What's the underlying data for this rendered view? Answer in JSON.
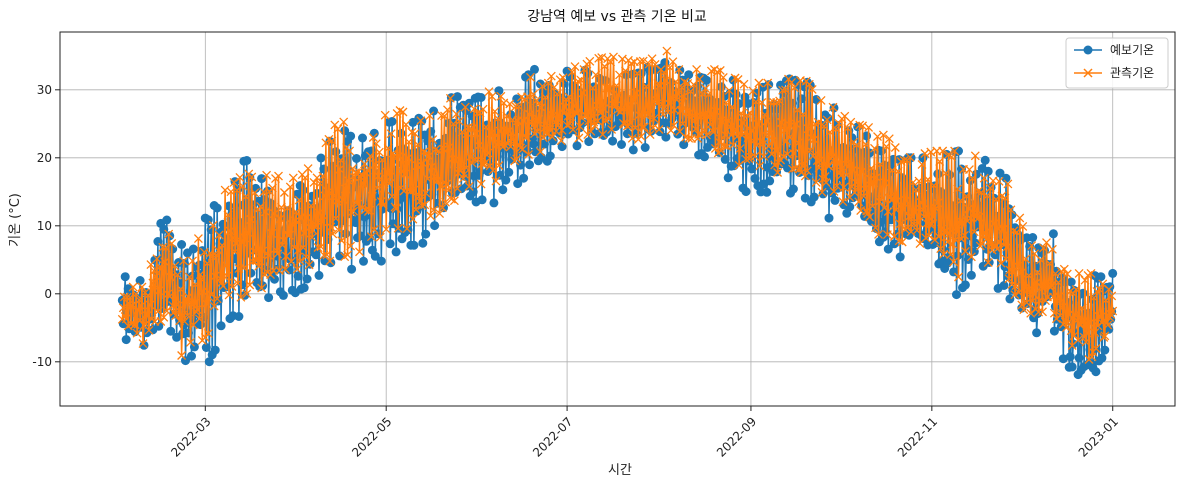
{
  "chart_data": {
    "type": "line",
    "title": "강남역 예보 vs 관측 기온 비교",
    "xlabel": "시간",
    "ylabel": "기온 (°C)",
    "x_range": [
      "2022-01-11",
      "2023-01-22"
    ],
    "ylim": [
      -16.5,
      38.5
    ],
    "x_ticks": [
      "2022-03",
      "2022-05",
      "2022-07",
      "2022-09",
      "2022-11",
      "2023-01"
    ],
    "y_ticks": [
      -10,
      0,
      10,
      20,
      30
    ],
    "grid": true,
    "legend_position": "top-right",
    "data_start": "2022-02-01",
    "data_end": "2023-01-01",
    "series": [
      {
        "name": "예보기온",
        "color": "#1f77b4",
        "marker": "circle",
        "envelope": [
          {
            "date": "2022-02-01",
            "low": -6,
            "high": 3
          },
          {
            "date": "2022-02-08",
            "low": -10,
            "high": 2
          },
          {
            "date": "2022-02-15",
            "low": -5,
            "high": 12
          },
          {
            "date": "2022-02-22",
            "low": -12,
            "high": 7
          },
          {
            "date": "2022-02-28",
            "low": -12,
            "high": 11
          },
          {
            "date": "2022-03-07",
            "low": -6,
            "high": 16
          },
          {
            "date": "2022-03-15",
            "low": -2,
            "high": 20
          },
          {
            "date": "2022-03-22",
            "low": -1,
            "high": 16
          },
          {
            "date": "2022-03-30",
            "low": 0,
            "high": 17
          },
          {
            "date": "2022-04-07",
            "low": 1,
            "high": 19
          },
          {
            "date": "2022-04-15",
            "low": 3,
            "high": 26
          },
          {
            "date": "2022-04-22",
            "low": 4,
            "high": 23
          },
          {
            "date": "2022-05-01",
            "low": 5,
            "high": 26
          },
          {
            "date": "2022-05-10",
            "low": 6,
            "high": 26
          },
          {
            "date": "2022-05-18",
            "low": 9,
            "high": 27
          },
          {
            "date": "2022-05-26",
            "low": 12,
            "high": 30
          },
          {
            "date": "2022-06-03",
            "low": 13,
            "high": 30
          },
          {
            "date": "2022-06-12",
            "low": 14,
            "high": 30
          },
          {
            "date": "2022-06-20",
            "low": 18,
            "high": 33
          },
          {
            "date": "2022-06-28",
            "low": 20,
            "high": 32
          },
          {
            "date": "2022-07-06",
            "low": 22,
            "high": 34
          },
          {
            "date": "2022-07-15",
            "low": 22,
            "high": 31
          },
          {
            "date": "2022-07-25",
            "low": 21,
            "high": 33
          },
          {
            "date": "2022-08-03",
            "low": 23,
            "high": 34
          },
          {
            "date": "2022-08-12",
            "low": 21,
            "high": 32
          },
          {
            "date": "2022-08-21",
            "low": 18,
            "high": 32
          },
          {
            "date": "2022-08-30",
            "low": 14,
            "high": 31
          },
          {
            "date": "2022-09-08",
            "low": 14,
            "high": 31
          },
          {
            "date": "2022-09-18",
            "low": 13,
            "high": 32
          },
          {
            "date": "2022-09-27",
            "low": 11,
            "high": 28
          },
          {
            "date": "2022-10-06",
            "low": 11,
            "high": 25
          },
          {
            "date": "2022-10-15",
            "low": 5,
            "high": 21
          },
          {
            "date": "2022-10-24",
            "low": 3,
            "high": 20
          },
          {
            "date": "2022-11-02",
            "low": 4,
            "high": 20
          },
          {
            "date": "2022-11-10",
            "low": -1,
            "high": 21
          },
          {
            "date": "2022-11-18",
            "low": 2,
            "high": 20
          },
          {
            "date": "2022-11-26",
            "low": -1,
            "high": 17
          },
          {
            "date": "2022-12-04",
            "low": -7,
            "high": 8
          },
          {
            "date": "2022-12-11",
            "low": -5,
            "high": 10
          },
          {
            "date": "2022-12-18",
            "low": -13,
            "high": 4
          },
          {
            "date": "2022-12-25",
            "low": -14,
            "high": 3
          },
          {
            "date": "2023-01-01",
            "low": -6,
            "high": 3
          }
        ]
      },
      {
        "name": "관측기온",
        "color": "#ff7f0e",
        "marker": "x",
        "envelope": [
          {
            "date": "2022-02-01",
            "low": -5,
            "high": 1
          },
          {
            "date": "2022-02-08",
            "low": -8,
            "high": 1
          },
          {
            "date": "2022-02-15",
            "low": -4,
            "high": 10
          },
          {
            "date": "2022-02-22",
            "low": -10,
            "high": 5
          },
          {
            "date": "2022-02-28",
            "low": -9,
            "high": 9
          },
          {
            "date": "2022-03-07",
            "low": -4,
            "high": 15
          },
          {
            "date": "2022-03-15",
            "low": 0,
            "high": 18
          },
          {
            "date": "2022-03-22",
            "low": 1,
            "high": 18
          },
          {
            "date": "2022-03-30",
            "low": 2,
            "high": 17
          },
          {
            "date": "2022-04-07",
            "low": 3,
            "high": 19
          },
          {
            "date": "2022-04-15",
            "low": 5,
            "high": 26
          },
          {
            "date": "2022-04-22",
            "low": 6,
            "high": 23
          },
          {
            "date": "2022-05-01",
            "low": 8,
            "high": 28
          },
          {
            "date": "2022-05-10",
            "low": 9,
            "high": 26
          },
          {
            "date": "2022-05-18",
            "low": 11,
            "high": 27
          },
          {
            "date": "2022-05-26",
            "low": 14,
            "high": 30
          },
          {
            "date": "2022-06-03",
            "low": 15,
            "high": 30
          },
          {
            "date": "2022-06-12",
            "low": 16,
            "high": 31
          },
          {
            "date": "2022-06-20",
            "low": 20,
            "high": 32
          },
          {
            "date": "2022-06-28",
            "low": 22,
            "high": 32
          },
          {
            "date": "2022-07-06",
            "low": 22,
            "high": 34
          },
          {
            "date": "2022-07-15",
            "low": 23,
            "high": 35
          },
          {
            "date": "2022-07-25",
            "low": 22,
            "high": 34
          },
          {
            "date": "2022-08-03",
            "low": 24,
            "high": 36
          },
          {
            "date": "2022-08-12",
            "low": 22,
            "high": 33
          },
          {
            "date": "2022-08-21",
            "low": 20,
            "high": 33
          },
          {
            "date": "2022-08-30",
            "low": 17,
            "high": 31
          },
          {
            "date": "2022-09-08",
            "low": 17,
            "high": 31
          },
          {
            "date": "2022-09-18",
            "low": 15,
            "high": 32
          },
          {
            "date": "2022-09-27",
            "low": 13,
            "high": 28
          },
          {
            "date": "2022-10-06",
            "low": 12,
            "high": 25
          },
          {
            "date": "2022-10-15",
            "low": 7,
            "high": 24
          },
          {
            "date": "2022-10-24",
            "low": 5,
            "high": 20
          },
          {
            "date": "2022-11-02",
            "low": 6,
            "high": 21
          },
          {
            "date": "2022-11-10",
            "low": 1,
            "high": 21
          },
          {
            "date": "2022-11-18",
            "low": 4,
            "high": 20
          },
          {
            "date": "2022-11-26",
            "low": 1,
            "high": 17
          },
          {
            "date": "2022-12-04",
            "low": -6,
            "high": 7
          },
          {
            "date": "2022-12-11",
            "low": -4,
            "high": 8
          },
          {
            "date": "2022-12-18",
            "low": -10,
            "high": 3
          },
          {
            "date": "2022-12-25",
            "low": -12,
            "high": 3
          },
          {
            "date": "2023-01-01",
            "low": -5,
            "high": 2
          }
        ]
      }
    ]
  }
}
